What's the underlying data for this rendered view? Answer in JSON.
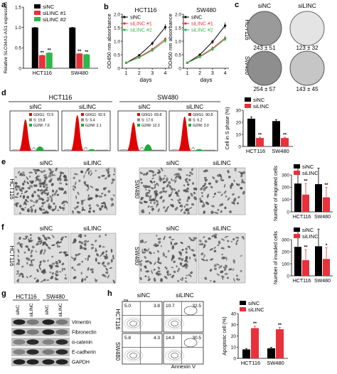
{
  "colors": {
    "siNC": "#000000",
    "siLINC1": "#e8313b",
    "siLINC2": "#2db84a",
    "gray": "#8a8a8a",
    "img": "#d8d8d8"
  },
  "panel_labels": [
    "a",
    "b",
    "c",
    "d",
    "e",
    "f",
    "g",
    "h"
  ],
  "cells": {
    "hct116": "HCT116",
    "sw480": "SW480",
    "siNC": "siNC",
    "siLINC": "siLINC"
  },
  "legend_a": [
    "siNC",
    "siLINC #1",
    "siLINC #2"
  ],
  "legend_b": [
    "siNC",
    "siLINC #1",
    "siLINC #2"
  ],
  "legend_2": [
    "siNC",
    "siLINC"
  ],
  "sig": "**",
  "sig1": "*",
  "xlabel_days": "days",
  "b_titles": [
    "HCT116",
    "SW480"
  ],
  "c_counts": [
    "243 ± 51",
    "123 ± 32",
    "254 ± 57",
    "143 ± 45"
  ],
  "d_flow": [
    [
      "G0/G1: 72.5",
      "S: 19.8",
      "G2/M: 7.6"
    ],
    [
      "G0/G1: 92.5",
      "S: 5.4",
      "G2/M: 2.1"
    ],
    [
      "G0/G1: 69.8",
      "S: 17.6",
      "G2/M: 12.3"
    ],
    [
      "G0/G1: 90.8",
      "S: 6.2",
      "G2/M: 3.0"
    ]
  ],
  "h_quadrants": [
    [
      "5.0",
      "3.8"
    ],
    [
      "10.7",
      "32.5"
    ],
    [
      "5.8",
      "4.3"
    ],
    [
      "14.3",
      "30.5"
    ]
  ],
  "h_axes": {
    "y": "PI",
    "x": "Annexin V"
  },
  "g_proteins": [
    "Vimentin",
    "Fibronectin",
    "α-catenin",
    "E-cadherin",
    "GAPDH"
  ],
  "chart_data": [
    {
      "panel": "a",
      "type": "bar",
      "ylabel": "Relative SLC04A1-AS1 expression",
      "categories": [
        "HCT116",
        "SW480"
      ],
      "ylim": [
        0,
        1.5
      ],
      "yticks": [
        "0",
        "0.5",
        "1.0",
        "1.5"
      ],
      "series": [
        {
          "name": "siNC",
          "values": [
            1.0,
            1.0
          ]
        },
        {
          "name": "siLINC #1",
          "values": [
            0.32,
            0.36
          ]
        },
        {
          "name": "siLINC #2",
          "values": [
            0.38,
            0.34
          ]
        }
      ]
    },
    {
      "panel": "b",
      "type": "line",
      "title": "HCT116",
      "ylabel": "OD450 nm absorbance",
      "xlabel": "days",
      "x": [
        1,
        2,
        3,
        4
      ],
      "ylim": [
        0,
        2.0
      ],
      "yticks": [
        "0",
        "0.5",
        "1.0",
        "1.5",
        "2.0"
      ],
      "series": [
        {
          "name": "siNC",
          "values": [
            0.2,
            0.48,
            0.92,
            1.52
          ]
        },
        {
          "name": "siLINC #1",
          "values": [
            0.2,
            0.42,
            0.7,
            1.08
          ]
        },
        {
          "name": "siLINC #2",
          "values": [
            0.2,
            0.4,
            0.66,
            1.02
          ]
        }
      ]
    },
    {
      "panel": "b",
      "type": "line",
      "title": "SW480",
      "ylabel": "OD450 nm absorbance",
      "xlabel": "days",
      "x": [
        1,
        2,
        3,
        4
      ],
      "ylim": [
        0,
        2.0
      ],
      "yticks": [
        "0",
        "0.5",
        "1.0",
        "1.5",
        "2.0"
      ],
      "series": [
        {
          "name": "siNC",
          "values": [
            0.2,
            0.5,
            0.98,
            1.58
          ]
        },
        {
          "name": "siLINC #1",
          "values": [
            0.2,
            0.44,
            0.74,
            1.12
          ]
        },
        {
          "name": "siLINC #2",
          "values": [
            0.2,
            0.42,
            0.7,
            1.08
          ]
        }
      ]
    },
    {
      "panel": "d",
      "type": "bar",
      "ylabel": "Cell in S phase (%)",
      "categories": [
        "HCT116",
        "SW480"
      ],
      "ylim": [
        0,
        30
      ],
      "yticks": [
        "0",
        "10",
        "20",
        "30"
      ],
      "series": [
        {
          "name": "siNC",
          "values": [
            23,
            21
          ]
        },
        {
          "name": "siLINC",
          "values": [
            7,
            7
          ]
        }
      ]
    },
    {
      "panel": "e",
      "type": "bar",
      "ylabel": "Number of migrated cells",
      "categories": [
        "HCT116",
        "SW480"
      ],
      "ylim": [
        0,
        300
      ],
      "yticks": [
        "0",
        "100",
        "200",
        "300"
      ],
      "series": [
        {
          "name": "siNC",
          "values": [
            230,
            225
          ]
        },
        {
          "name": "siLINC",
          "values": [
            140,
            118
          ]
        }
      ]
    },
    {
      "panel": "f",
      "type": "bar",
      "ylabel": "Number of invaded cells",
      "categories": [
        "HCT116",
        "SW480"
      ],
      "ylim": [
        0,
        300
      ],
      "yticks": [
        "0",
        "100",
        "200",
        "300"
      ],
      "series": [
        {
          "name": "siNC",
          "values": [
            240,
            245
          ]
        },
        {
          "name": "siLINC",
          "values": [
            130,
            140
          ]
        }
      ]
    },
    {
      "panel": "h",
      "type": "bar",
      "ylabel": "Apoptotic cell (%)",
      "categories": [
        "HCT116",
        "SW480"
      ],
      "ylim": [
        0,
        40
      ],
      "yticks": [
        "0",
        "10",
        "20",
        "30",
        "40"
      ],
      "series": [
        {
          "name": "siNC",
          "values": [
            8,
            9
          ]
        },
        {
          "name": "siLINC",
          "values": [
            27,
            26
          ]
        }
      ]
    }
  ]
}
